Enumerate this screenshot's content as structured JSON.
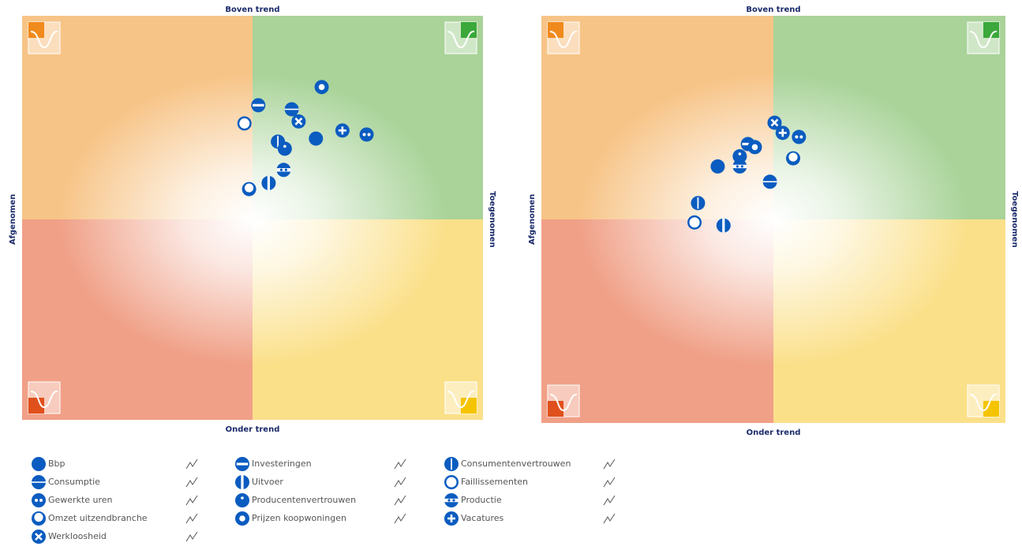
{
  "legend": {
    "items": [
      {
        "name": "Bbp",
        "marker": "filled"
      },
      {
        "name": "Investeringen",
        "marker": "hbar"
      },
      {
        "name": "Consumentenvertrouwen",
        "marker": "vline"
      },
      {
        "name": "Consumptie",
        "marker": "hline"
      },
      {
        "name": "Uitvoer",
        "marker": "vbar"
      },
      {
        "name": "Faillissementen",
        "marker": "ring"
      },
      {
        "name": "Gewerkte uren",
        "marker": "two-dots"
      },
      {
        "name": "Producentenvertrouwen",
        "marker": "dot"
      },
      {
        "name": "Productie",
        "marker": "bar-dots"
      },
      {
        "name": "Omzet uitzendbranche",
        "marker": "crescent"
      },
      {
        "name": "Prijzen koopwoningen",
        "marker": "thick-ring"
      },
      {
        "name": "Vacatures",
        "marker": "plus"
      },
      {
        "name": "Werkloosheid",
        "marker": "cross"
      }
    ]
  },
  "chart_data": [
    {
      "type": "scatter",
      "top_label": "Boven trend",
      "bottom_label": "Onder trend",
      "left_label": "Afgenomen",
      "right_label": "Toegenomen",
      "xlim": [
        -2,
        2
      ],
      "ylim": [
        -2,
        2
      ],
      "color": "#0b5cc0",
      "x": [
        0.55,
        0.05,
        0.22,
        0.34,
        0.14,
        -0.07,
        0.99,
        0.28,
        0.27,
        -0.03,
        0.6,
        0.78,
        0.4
      ],
      "y": [
        0.8,
        1.13,
        0.77,
        1.09,
        0.36,
        0.95,
        0.84,
        0.7,
        0.49,
        0.3,
        1.31,
        0.88,
        0.97
      ]
    },
    {
      "type": "scatter",
      "top_label": "Boven trend",
      "bottom_label": "Onder trend",
      "left_label": "Afgenomen",
      "right_label": "Toegenomen",
      "xlim": [
        -2,
        2
      ],
      "ylim": [
        -2,
        2
      ],
      "color": "#0b5cc0",
      "x": [
        -0.48,
        -0.22,
        -0.65,
        -0.03,
        -0.43,
        -0.68,
        0.22,
        -0.29,
        -0.29,
        0.17,
        -0.16,
        0.08,
        0.01
      ],
      "y": [
        0.52,
        0.74,
        0.16,
        0.37,
        -0.06,
        -0.03,
        0.81,
        0.62,
        0.52,
        0.6,
        0.71,
        0.85,
        0.95
      ]
    }
  ]
}
